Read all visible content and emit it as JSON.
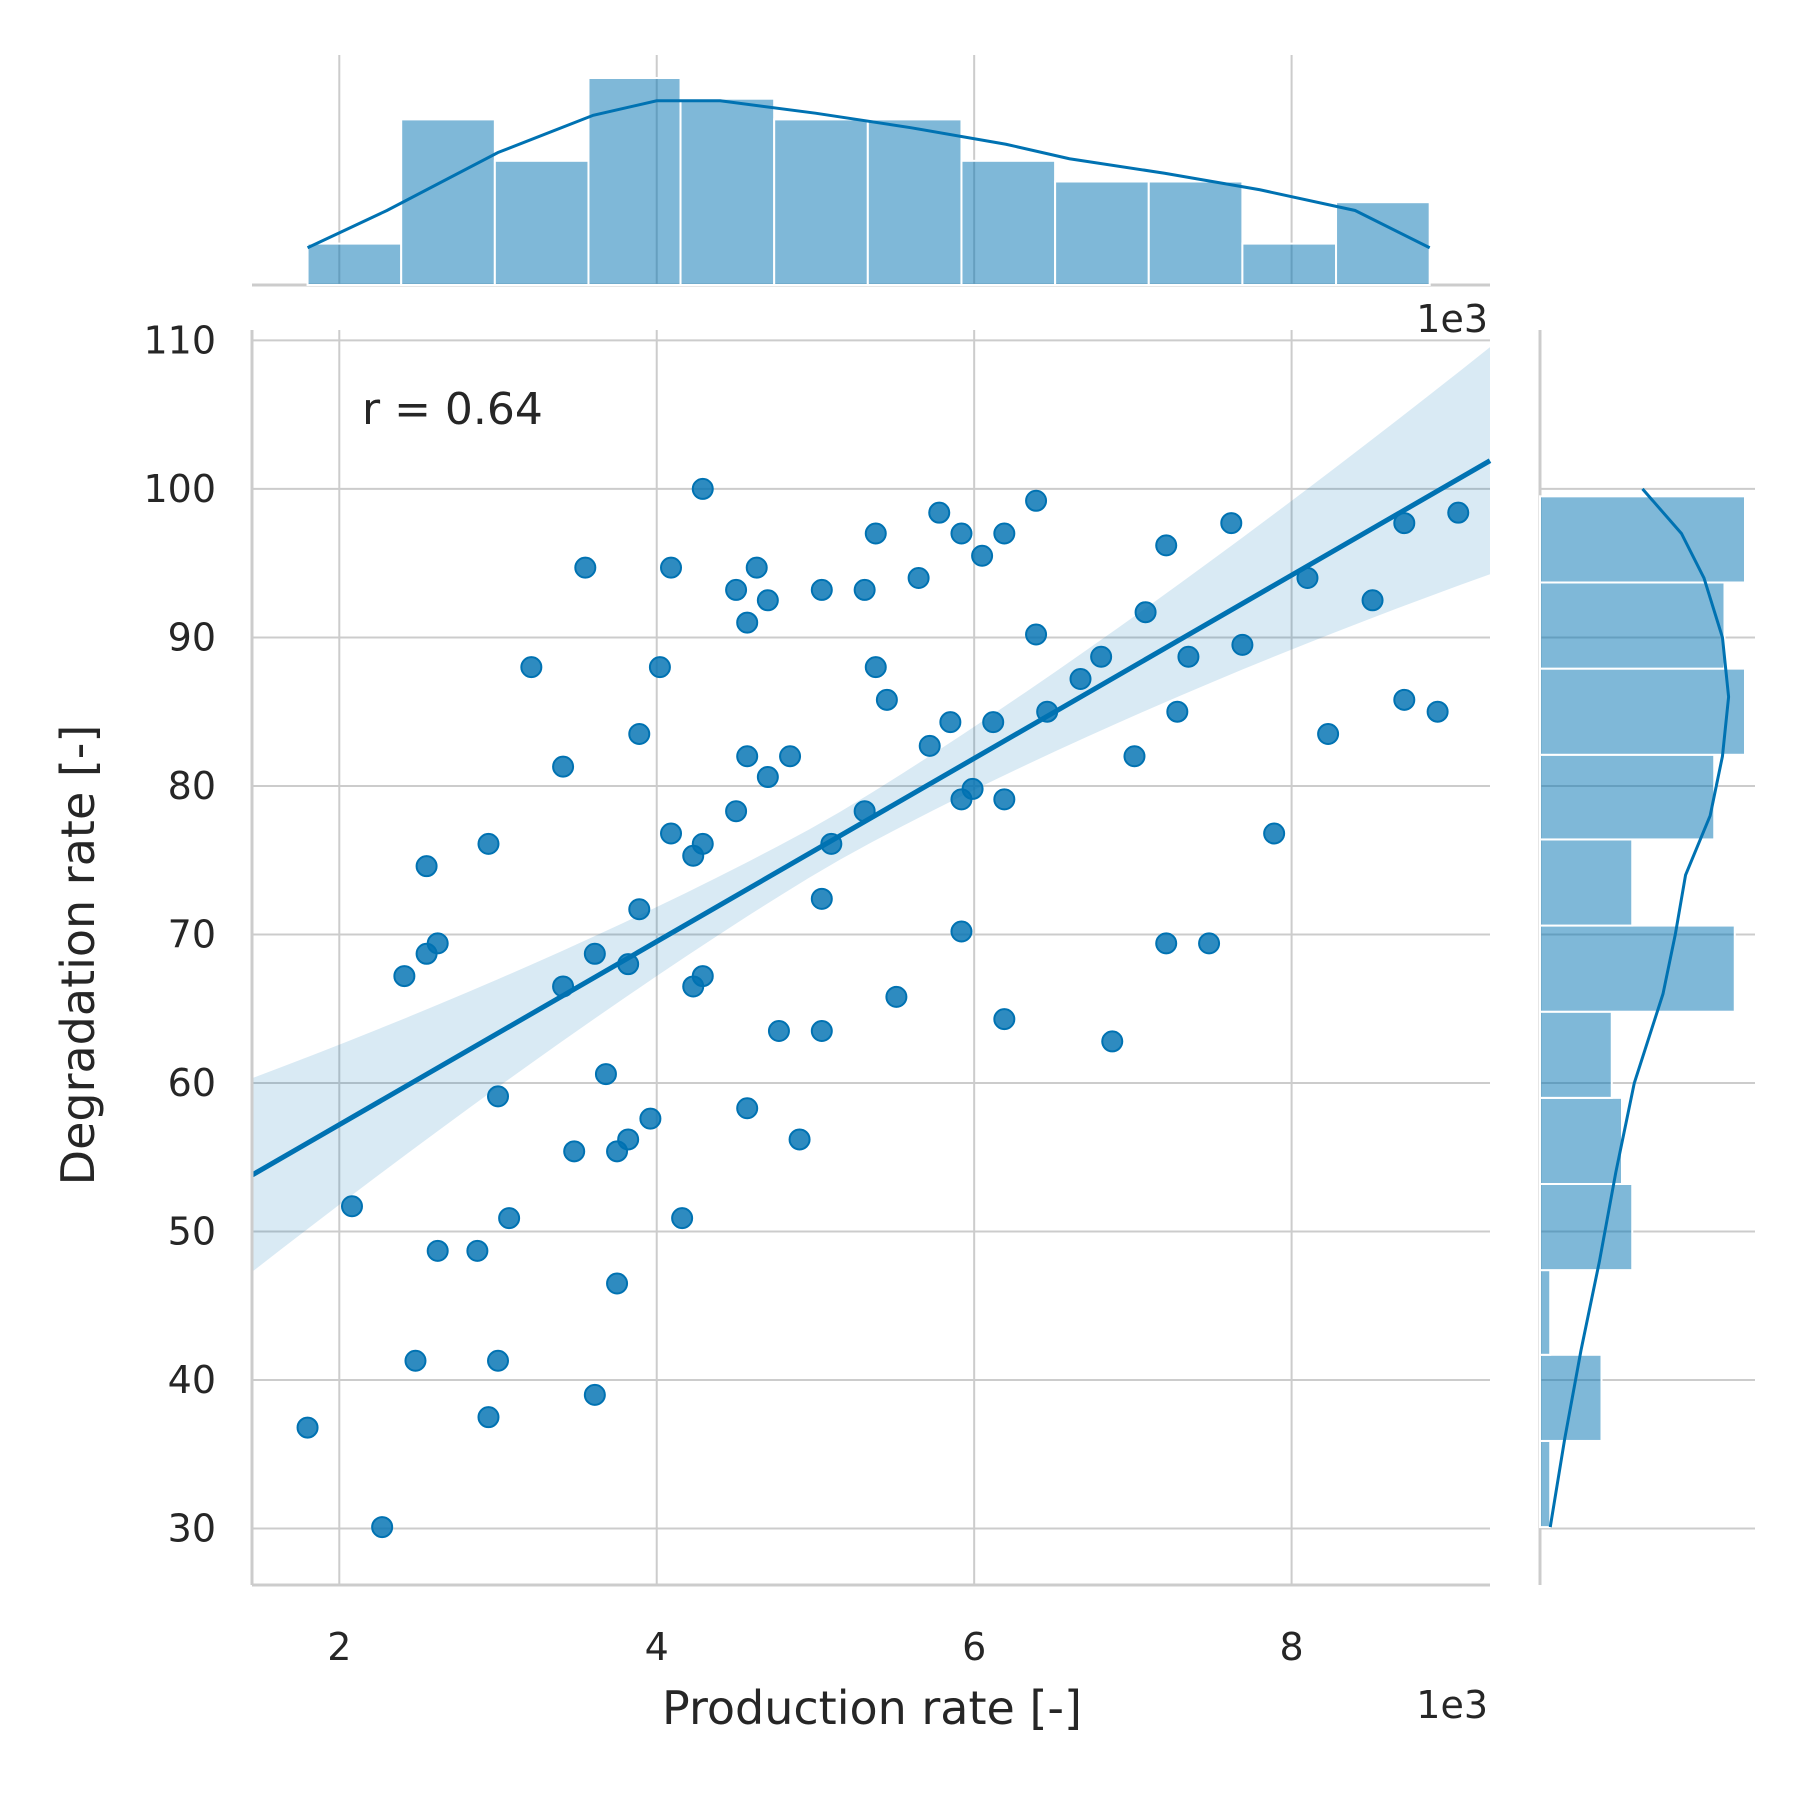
{
  "chart_data": {
    "type": "scatter",
    "xlabel": "Production rate [-]",
    "ylabel": "Degradation rate [-]",
    "x_scale_label": "1e3",
    "x_scale_factor": 1000,
    "xlim": [
      1.45,
      9.25
    ],
    "ylim": [
      26.2,
      110.7
    ],
    "xticks": [
      2,
      4,
      6,
      8
    ],
    "yticks": [
      30,
      40,
      50,
      60,
      70,
      80,
      90,
      100,
      110
    ],
    "grid": true,
    "annotation": "r = 0.64",
    "color": "#0072b2",
    "regression": {
      "x": [
        1.45,
        9.25
      ],
      "y": [
        53.8,
        101.9
      ]
    },
    "points": [
      [
        1.8,
        36.8
      ],
      [
        2.27,
        30.1
      ],
      [
        2.08,
        51.7
      ],
      [
        2.41,
        67.2
      ],
      [
        2.48,
        41.3
      ],
      [
        2.55,
        74.6
      ],
      [
        2.55,
        68.7
      ],
      [
        2.62,
        69.4
      ],
      [
        2.62,
        48.7
      ],
      [
        2.87,
        48.7
      ],
      [
        2.94,
        37.5
      ],
      [
        2.94,
        76.1
      ],
      [
        3.0,
        59.1
      ],
      [
        3.0,
        41.3
      ],
      [
        3.07,
        50.9
      ],
      [
        3.21,
        88.0
      ],
      [
        3.41,
        81.3
      ],
      [
        3.41,
        66.5
      ],
      [
        3.48,
        55.4
      ],
      [
        3.55,
        94.7
      ],
      [
        3.61,
        68.7
      ],
      [
        3.61,
        39.0
      ],
      [
        3.68,
        60.6
      ],
      [
        3.75,
        46.5
      ],
      [
        3.75,
        55.4
      ],
      [
        3.82,
        56.2
      ],
      [
        3.82,
        68.0
      ],
      [
        3.89,
        83.5
      ],
      [
        3.89,
        71.7
      ],
      [
        3.96,
        57.6
      ],
      [
        4.02,
        88.0
      ],
      [
        4.09,
        94.7
      ],
      [
        4.09,
        76.8
      ],
      [
        4.16,
        50.9
      ],
      [
        4.23,
        75.3
      ],
      [
        4.23,
        66.5
      ],
      [
        4.29,
        100.0
      ],
      [
        4.29,
        76.1
      ],
      [
        4.29,
        67.2
      ],
      [
        4.5,
        93.2
      ],
      [
        4.5,
        78.3
      ],
      [
        4.57,
        91.0
      ],
      [
        4.57,
        82.0
      ],
      [
        4.57,
        58.3
      ],
      [
        4.63,
        94.7
      ],
      [
        4.7,
        92.5
      ],
      [
        4.7,
        80.6
      ],
      [
        4.77,
        63.5
      ],
      [
        4.84,
        82.0
      ],
      [
        4.9,
        56.2
      ],
      [
        5.04,
        93.2
      ],
      [
        5.04,
        72.4
      ],
      [
        5.04,
        63.5
      ],
      [
        5.1,
        76.1
      ],
      [
        5.31,
        93.2
      ],
      [
        5.31,
        78.3
      ],
      [
        5.38,
        97.0
      ],
      [
        5.38,
        88.0
      ],
      [
        5.45,
        85.8
      ],
      [
        5.51,
        65.8
      ],
      [
        5.65,
        94.0
      ],
      [
        5.72,
        82.7
      ],
      [
        5.78,
        98.4
      ],
      [
        5.85,
        84.3
      ],
      [
        5.92,
        97.0
      ],
      [
        5.92,
        79.1
      ],
      [
        5.92,
        70.2
      ],
      [
        5.99,
        79.8
      ],
      [
        6.05,
        95.5
      ],
      [
        6.12,
        84.3
      ],
      [
        6.19,
        97.0
      ],
      [
        6.19,
        79.1
      ],
      [
        6.19,
        64.3
      ],
      [
        6.39,
        99.2
      ],
      [
        6.39,
        90.2
      ],
      [
        6.46,
        85.0
      ],
      [
        6.67,
        87.2
      ],
      [
        6.8,
        88.7
      ],
      [
        6.87,
        62.8
      ],
      [
        7.01,
        82.0
      ],
      [
        7.08,
        91.7
      ],
      [
        7.21,
        96.2
      ],
      [
        7.21,
        69.4
      ],
      [
        7.28,
        85.0
      ],
      [
        7.35,
        88.7
      ],
      [
        7.48,
        69.4
      ],
      [
        7.62,
        97.7
      ],
      [
        7.69,
        89.5
      ],
      [
        7.89,
        76.8
      ],
      [
        8.1,
        94.0
      ],
      [
        8.23,
        83.5
      ],
      [
        8.51,
        92.5
      ],
      [
        8.71,
        97.7
      ],
      [
        8.71,
        85.8
      ],
      [
        8.92,
        85.0
      ],
      [
        9.05,
        98.4
      ]
    ],
    "x_histogram": {
      "bin_edges": [
        1.8,
        2.39,
        2.98,
        3.57,
        4.15,
        4.74,
        5.33,
        5.92,
        6.51,
        7.1,
        7.69,
        8.28,
        8.87
      ],
      "counts": [
        2,
        8,
        6,
        10,
        9,
        8,
        8,
        6,
        5,
        5,
        2,
        4
      ],
      "kde": [
        [
          1.8,
          1.8
        ],
        [
          2.3,
          3.6
        ],
        [
          3.0,
          6.4
        ],
        [
          3.6,
          8.2
        ],
        [
          4.0,
          8.9
        ],
        [
          4.4,
          8.9
        ],
        [
          5.0,
          8.3
        ],
        [
          5.6,
          7.6
        ],
        [
          6.2,
          6.8
        ],
        [
          6.6,
          6.1
        ],
        [
          7.2,
          5.4
        ],
        [
          7.8,
          4.6
        ],
        [
          8.4,
          3.6
        ],
        [
          8.87,
          1.8
        ]
      ]
    },
    "y_histogram": {
      "bin_edges": [
        30.1,
        35.9,
        41.7,
        47.4,
        53.2,
        59.0,
        64.8,
        70.6,
        76.4,
        82.1,
        87.9,
        93.7,
        99.5
      ],
      "counts": [
        0.5,
        3,
        0.5,
        4.5,
        4,
        3.5,
        9.5,
        4.5,
        8.5,
        10,
        9,
        10
      ],
      "kde": [
        [
          30.1,
          0.5
        ],
        [
          36.0,
          1.2
        ],
        [
          42.0,
          2.0
        ],
        [
          48.0,
          2.9
        ],
        [
          54.0,
          3.7
        ],
        [
          60.0,
          4.6
        ],
        [
          66.0,
          6.0
        ],
        [
          70.0,
          6.6
        ],
        [
          74.0,
          7.1
        ],
        [
          78.0,
          8.3
        ],
        [
          82.0,
          8.9
        ],
        [
          86.0,
          9.2
        ],
        [
          90.0,
          8.9
        ],
        [
          94.0,
          8.0
        ],
        [
          97.0,
          6.9
        ],
        [
          100.0,
          5.0
        ]
      ]
    }
  }
}
